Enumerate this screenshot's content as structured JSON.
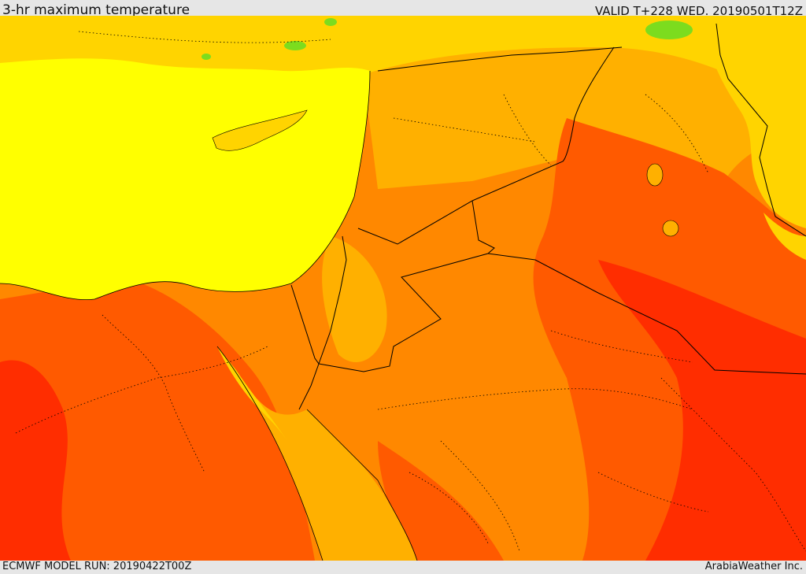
{
  "header": {
    "title": "3-hr maximum temperature",
    "valid": "VALID T+228 WED. 20190501T12Z"
  },
  "footer": {
    "model_run": "ECMWF MODEL RUN: 20190422T00Z",
    "credit": "ArabiaWeather Inc."
  },
  "colors": {
    "sea": "#ffff00",
    "cool": "#ffd400",
    "mild": "#ffb000",
    "warm": "#ff8800",
    "hot": "#ff5a00",
    "very_hot": "#ff2d00",
    "green": "#7cdc1e",
    "border": "#000000"
  }
}
